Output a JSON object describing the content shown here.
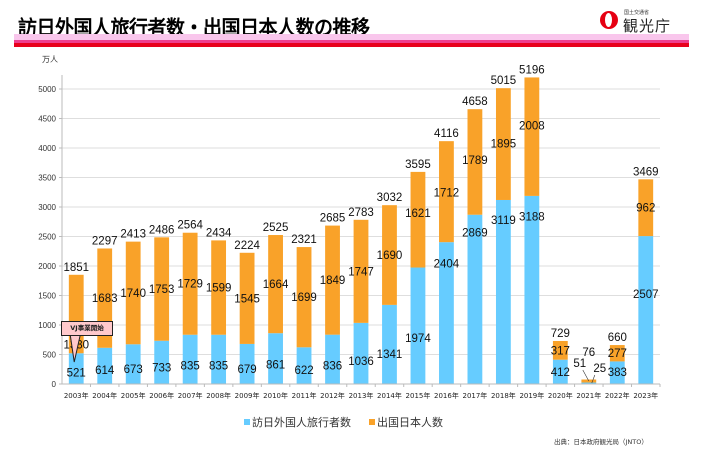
{
  "header": {
    "title": "訪日外国人旅行者数・出国日本人数の推移",
    "logo_ministry": "国土交通省",
    "logo_name": "観光庁"
  },
  "annotation": {
    "callout_text": "VJ事業開始",
    "callout_year": "2003年"
  },
  "legend": {
    "items": [
      {
        "label": "訪日外国人旅行者数",
        "color": "#66ccff"
      },
      {
        "label": "出国日本人数",
        "color": "#f9a229"
      }
    ]
  },
  "source": "出典：日本政府観光局（JNTO）",
  "chart_data": {
    "type": "bar",
    "stacked": true,
    "title": "訪日外国人旅行者数・出国日本人数の推移",
    "ylabel": "万人",
    "xlabel": "",
    "ylim": [
      0,
      5000
    ],
    "yticks": [
      0,
      500,
      1000,
      1500,
      2000,
      2500,
      3000,
      3500,
      4000,
      4500,
      5000
    ],
    "grid": true,
    "legend_position": "bottom",
    "categories": [
      "2003年",
      "2004年",
      "2005年",
      "2006年",
      "2007年",
      "2008年",
      "2009年",
      "2010年",
      "2011年",
      "2012年",
      "2013年",
      "2014年",
      "2015年",
      "2016年",
      "2017年",
      "2018年",
      "2019年",
      "2020年",
      "2021年",
      "2022年",
      "2023年"
    ],
    "series": [
      {
        "name": "訪日外国人旅行者数",
        "color": "#66ccff",
        "values": [
          521,
          614,
          673,
          733,
          835,
          835,
          679,
          861,
          622,
          836,
          1036,
          1341,
          1974,
          2404,
          2869,
          3119,
          3188,
          412,
          25,
          383,
          2507
        ]
      },
      {
        "name": "出国日本人数",
        "color": "#f9a229",
        "values": [
          1330,
          1683,
          1740,
          1753,
          1729,
          1599,
          1545,
          1664,
          1699,
          1849,
          1747,
          1690,
          1621,
          1712,
          1789,
          1895,
          2008,
          317,
          51,
          277,
          962
        ]
      }
    ],
    "totals": [
      1851,
      2297,
      2413,
      2486,
      2564,
      2434,
      2224,
      2525,
      2321,
      2685,
      2783,
      3032,
      3595,
      4116,
      4658,
      5015,
      5196,
      729,
      76,
      660,
      3469
    ]
  }
}
